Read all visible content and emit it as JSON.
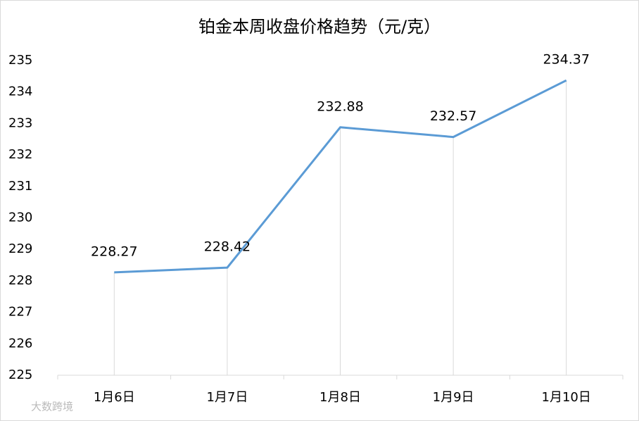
{
  "chart_data": {
    "type": "line",
    "title": "铂金本周收盘价格趋势（元/克）",
    "categories": [
      "1月6日",
      "1月7日",
      "1月8日",
      "1月9日",
      "1月10日"
    ],
    "values": [
      228.27,
      228.42,
      232.88,
      232.57,
      234.37
    ],
    "color": "#5b9bd5",
    "ylim": [
      225,
      235
    ],
    "yticks": [
      225,
      226,
      227,
      228,
      229,
      230,
      231,
      232,
      233,
      234,
      235
    ],
    "drop_lines": true,
    "watermark": "大数跨境"
  }
}
